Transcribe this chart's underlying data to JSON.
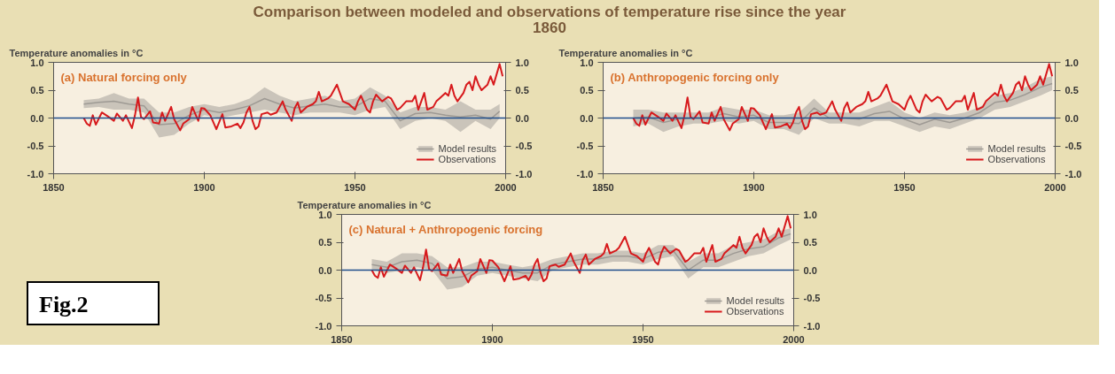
{
  "chart_data": [
    {
      "type": "line",
      "title": "Comparison between modeled and observations of temperature rise since the year 1860",
      "subtitle": "(a) Natural forcing only",
      "ylabel": "Temperature anomalies in °C",
      "xlim": [
        1850,
        2000
      ],
      "xticks": [
        1850,
        1900,
        1950,
        2000
      ],
      "ylim": [
        -1.0,
        1.0
      ],
      "yticks": [
        {
          "value": -1.0,
          "label": "-1.0"
        },
        {
          "value": -0.5,
          "label": "-0.5"
        },
        {
          "value": 0,
          "label": "0.0"
        },
        {
          "value": 0.5,
          "label": "0.5"
        },
        {
          "value": 1.0,
          "label": "1.0"
        }
      ],
      "y2lim": [
        -1.0,
        1.0
      ],
      "y2ticks": [
        {
          "value": -1.0,
          "label": "-1.0"
        },
        {
          "value": -0.5,
          "label": "-0.5"
        },
        {
          "value": 0,
          "label": "0.0"
        },
        {
          "value": 0.5,
          "label": "0.5"
        },
        {
          "value": 1.0,
          "label": "1.0"
        }
      ],
      "ref_lines": [
        {
          "axis": "y",
          "value": 0,
          "color": "#1f4e8c"
        }
      ],
      "grid": false,
      "legend": "bottom right",
      "series": [
        {
          "name": "Model results",
          "color": "#9e9a94",
          "x": [
            1860,
            1865,
            1870,
            1875,
            1880,
            1885,
            1890,
            1895,
            1900,
            1905,
            1910,
            1915,
            1920,
            1925,
            1930,
            1935,
            1940,
            1945,
            1950,
            1955,
            1960,
            1965,
            1970,
            1975,
            1980,
            1985,
            1990,
            1995,
            1998
          ],
          "lower": [
            0.18,
            0.2,
            0.15,
            0.15,
            0.1,
            -0.35,
            -0.3,
            -0.1,
            0.05,
            0.0,
            0.05,
            0.1,
            0.15,
            0.1,
            0.05,
            0.1,
            0.1,
            0.1,
            0.05,
            0.15,
            0.2,
            -0.2,
            -0.05,
            0.0,
            -0.05,
            -0.25,
            -0.05,
            -0.2,
            0.0
          ],
          "upper": [
            0.32,
            0.35,
            0.45,
            0.35,
            0.35,
            0.1,
            0.1,
            0.2,
            0.25,
            0.2,
            0.25,
            0.35,
            0.55,
            0.4,
            0.3,
            0.35,
            0.4,
            0.3,
            0.35,
            0.55,
            0.4,
            0.1,
            0.2,
            0.2,
            0.15,
            0.3,
            0.15,
            0.15,
            0.25
          ],
          "values": [
            0.25,
            0.28,
            0.3,
            0.25,
            0.22,
            -0.12,
            -0.1,
            0.05,
            0.15,
            0.1,
            0.15,
            0.22,
            0.35,
            0.25,
            0.18,
            0.22,
            0.25,
            0.2,
            0.2,
            0.35,
            0.3,
            -0.05,
            0.08,
            0.1,
            0.05,
            0.02,
            0.05,
            -0.02,
            0.12
          ]
        },
        {
          "name": "Observations",
          "color": "#d7191c",
          "x": [
            1860,
            1861,
            1862,
            1863,
            1864,
            1866,
            1868,
            1870,
            1871,
            1873,
            1874,
            1876,
            1877,
            1878,
            1879,
            1880,
            1882,
            1883,
            1885,
            1886,
            1887,
            1889,
            1890,
            1892,
            1893,
            1895,
            1896,
            1898,
            1899,
            1900,
            1902,
            1904,
            1906,
            1907,
            1909,
            1911,
            1912,
            1913,
            1914,
            1915,
            1916,
            1917,
            1918,
            1919,
            1921,
            1922,
            1924,
            1926,
            1927,
            1929,
            1930,
            1931,
            1932,
            1934,
            1936,
            1937,
            1938,
            1939,
            1941,
            1942,
            1944,
            1945,
            1946,
            1948,
            1950,
            1951,
            1952,
            1954,
            1955,
            1956,
            1957,
            1959,
            1961,
            1962,
            1964,
            1965,
            1967,
            1969,
            1970,
            1971,
            1972,
            1973,
            1974,
            1976,
            1977,
            1978,
            1980,
            1981,
            1982,
            1983,
            1984,
            1986,
            1987,
            1988,
            1989,
            1990,
            1991,
            1992,
            1994,
            1995,
            1996,
            1998,
            1999
          ],
          "values": [
            0.0,
            -0.1,
            -0.14,
            0.05,
            -0.12,
            0.1,
            0.03,
            -0.05,
            0.08,
            -0.05,
            0.05,
            -0.18,
            0.05,
            0.37,
            0.02,
            -0.02,
            0.12,
            -0.08,
            -0.1,
            0.1,
            -0.05,
            0.2,
            -0.02,
            -0.22,
            -0.1,
            -0.02,
            0.2,
            -0.05,
            0.18,
            0.17,
            0.05,
            -0.2,
            0.07,
            -0.17,
            -0.15,
            -0.1,
            -0.18,
            -0.08,
            0.1,
            0.2,
            -0.05,
            -0.2,
            -0.15,
            0.07,
            0.1,
            0.06,
            0.1,
            0.3,
            0.15,
            -0.05,
            0.18,
            0.28,
            0.1,
            0.2,
            0.25,
            0.3,
            0.47,
            0.3,
            0.35,
            0.4,
            0.6,
            0.45,
            0.3,
            0.25,
            0.15,
            0.3,
            0.4,
            0.15,
            0.1,
            0.3,
            0.42,
            0.3,
            0.38,
            0.35,
            0.15,
            0.18,
            0.3,
            0.3,
            0.4,
            0.15,
            0.3,
            0.45,
            0.15,
            0.2,
            0.3,
            0.35,
            0.45,
            0.4,
            0.6,
            0.4,
            0.3,
            0.45,
            0.6,
            0.65,
            0.5,
            0.75,
            0.6,
            0.5,
            0.6,
            0.75,
            0.6,
            0.97,
            0.75
          ]
        }
      ]
    },
    {
      "type": "line",
      "subtitle": "(b) Anthropogenic forcing only",
      "ylabel": "Temperature anomalies in °C",
      "xlim": [
        1850,
        2000
      ],
      "xticks": [
        1850,
        1900,
        1950,
        2000
      ],
      "ylim": [
        -1.0,
        1.0
      ],
      "yticks": [
        {
          "value": -1.0,
          "label": "-1.0"
        },
        {
          "value": -0.5,
          "label": "-0.5"
        },
        {
          "value": 0,
          "label": "0.0"
        },
        {
          "value": 0.5,
          "label": "0.5"
        },
        {
          "value": 1.0,
          "label": "1.0"
        }
      ],
      "y2lim": [
        -1.0,
        1.0
      ],
      "y2ticks": [
        {
          "value": -1.0,
          "label": "-1.0"
        },
        {
          "value": -0.5,
          "label": "-0.5"
        },
        {
          "value": 0,
          "label": "0.0"
        },
        {
          "value": 0.5,
          "label": "0.5"
        },
        {
          "value": 1.0,
          "label": "1.0"
        }
      ],
      "ref_lines": [
        {
          "axis": "y",
          "value": 0,
          "color": "#1f4e8c"
        }
      ],
      "grid": false,
      "legend": "bottom right",
      "series": [
        {
          "name": "Model results",
          "color": "#9e9a94",
          "x": [
            1860,
            1865,
            1870,
            1875,
            1880,
            1885,
            1890,
            1895,
            1900,
            1905,
            1910,
            1915,
            1920,
            1925,
            1930,
            1935,
            1940,
            1945,
            1950,
            1955,
            1960,
            1965,
            1970,
            1975,
            1980,
            1985,
            1990,
            1995,
            1999
          ],
          "lower": [
            -0.15,
            -0.1,
            -0.25,
            -0.15,
            -0.1,
            -0.1,
            -0.05,
            -0.1,
            -0.05,
            -0.2,
            -0.2,
            -0.3,
            0.0,
            -0.1,
            -0.1,
            -0.15,
            -0.05,
            -0.05,
            -0.15,
            -0.25,
            -0.15,
            -0.2,
            -0.1,
            0.0,
            0.15,
            0.2,
            0.3,
            0.4,
            0.5
          ],
          "upper": [
            0.15,
            0.15,
            0.1,
            0.1,
            0.1,
            0.1,
            0.2,
            0.15,
            0.15,
            0.05,
            0.05,
            0.1,
            0.35,
            0.1,
            0.1,
            0.1,
            0.2,
            0.3,
            0.1,
            0.0,
            0.1,
            0.05,
            0.1,
            0.2,
            0.4,
            0.45,
            0.55,
            0.7,
            0.75
          ],
          "values": [
            0.0,
            0.02,
            -0.08,
            -0.02,
            0.0,
            0.0,
            0.08,
            0.02,
            0.05,
            -0.08,
            -0.08,
            -0.1,
            0.18,
            0.0,
            0.0,
            -0.02,
            0.08,
            0.12,
            -0.02,
            -0.12,
            -0.02,
            -0.08,
            0.0,
            0.1,
            0.28,
            0.32,
            0.42,
            0.55,
            0.62
          ]
        },
        {
          "name": "Observations",
          "color": "#d7191c",
          "x": [
            1860,
            1861,
            1862,
            1863,
            1864,
            1866,
            1868,
            1870,
            1871,
            1873,
            1874,
            1876,
            1877,
            1878,
            1879,
            1880,
            1882,
            1883,
            1885,
            1886,
            1887,
            1889,
            1890,
            1892,
            1893,
            1895,
            1896,
            1898,
            1899,
            1900,
            1902,
            1904,
            1906,
            1907,
            1909,
            1911,
            1912,
            1913,
            1914,
            1915,
            1916,
            1917,
            1918,
            1919,
            1921,
            1922,
            1924,
            1926,
            1927,
            1929,
            1930,
            1931,
            1932,
            1934,
            1936,
            1937,
            1938,
            1939,
            1941,
            1942,
            1944,
            1945,
            1946,
            1948,
            1950,
            1951,
            1952,
            1954,
            1955,
            1956,
            1957,
            1959,
            1961,
            1962,
            1964,
            1965,
            1967,
            1969,
            1970,
            1971,
            1972,
            1973,
            1974,
            1976,
            1977,
            1978,
            1980,
            1981,
            1982,
            1983,
            1984,
            1986,
            1987,
            1988,
            1989,
            1990,
            1991,
            1992,
            1994,
            1995,
            1996,
            1998,
            1999
          ],
          "values": [
            0.0,
            -0.1,
            -0.14,
            0.05,
            -0.12,
            0.1,
            0.03,
            -0.05,
            0.08,
            -0.05,
            0.05,
            -0.18,
            0.05,
            0.37,
            0.02,
            -0.02,
            0.12,
            -0.08,
            -0.1,
            0.1,
            -0.05,
            0.2,
            -0.02,
            -0.22,
            -0.1,
            -0.02,
            0.2,
            -0.05,
            0.18,
            0.17,
            0.05,
            -0.2,
            0.07,
            -0.17,
            -0.15,
            -0.1,
            -0.18,
            -0.08,
            0.1,
            0.2,
            -0.05,
            -0.2,
            -0.15,
            0.07,
            0.1,
            0.06,
            0.1,
            0.3,
            0.15,
            -0.05,
            0.18,
            0.28,
            0.1,
            0.2,
            0.25,
            0.3,
            0.47,
            0.3,
            0.35,
            0.4,
            0.6,
            0.45,
            0.3,
            0.25,
            0.15,
            0.3,
            0.4,
            0.15,
            0.1,
            0.3,
            0.42,
            0.3,
            0.38,
            0.35,
            0.15,
            0.18,
            0.3,
            0.3,
            0.4,
            0.15,
            0.3,
            0.45,
            0.15,
            0.2,
            0.3,
            0.35,
            0.45,
            0.4,
            0.6,
            0.4,
            0.3,
            0.45,
            0.6,
            0.65,
            0.5,
            0.75,
            0.6,
            0.5,
            0.6,
            0.75,
            0.6,
            0.97,
            0.75
          ]
        }
      ]
    },
    {
      "type": "line",
      "subtitle": "(c) Natural + Anthropogenic forcing",
      "ylabel": "Temperature anomalies in °C",
      "annotations": [
        "Fig.2"
      ],
      "xlim": [
        1850,
        2000
      ],
      "xticks": [
        1850,
        1900,
        1950,
        2000
      ],
      "ylim": [
        -1.0,
        1.0
      ],
      "yticks": [
        {
          "value": -1.0,
          "label": "-1.0"
        },
        {
          "value": -0.5,
          "label": "-0.5"
        },
        {
          "value": 0,
          "label": "0.0"
        },
        {
          "value": 0.5,
          "label": "0.5"
        },
        {
          "value": 1.0,
          "label": "1.0"
        }
      ],
      "y2lim": [
        -1.0,
        1.0
      ],
      "y2ticks": [
        {
          "value": -1.0,
          "label": "-1.0"
        },
        {
          "value": -0.5,
          "label": "-0.5"
        },
        {
          "value": 0,
          "label": "0.0"
        },
        {
          "value": 0.5,
          "label": "0.5"
        },
        {
          "value": 1.0,
          "label": "1.0"
        }
      ],
      "ref_lines": [
        {
          "axis": "y",
          "value": 0,
          "color": "#1f4e8c"
        }
      ],
      "grid": false,
      "legend": "bottom right",
      "series": [
        {
          "name": "Model results",
          "color": "#9e9a94",
          "x": [
            1860,
            1865,
            1870,
            1875,
            1880,
            1885,
            1890,
            1895,
            1900,
            1905,
            1910,
            1915,
            1920,
            1925,
            1930,
            1935,
            1940,
            1945,
            1950,
            1955,
            1960,
            1965,
            1970,
            1975,
            1980,
            1985,
            1990,
            1995,
            1999
          ],
          "lower": [
            0.0,
            -0.05,
            0.0,
            0.05,
            0.0,
            -0.35,
            -0.3,
            -0.1,
            -0.05,
            -0.1,
            -0.15,
            -0.2,
            0.0,
            0.05,
            0.1,
            0.1,
            0.15,
            0.15,
            0.1,
            0.2,
            0.25,
            -0.15,
            0.05,
            0.05,
            0.15,
            0.25,
            0.3,
            0.45,
            0.55
          ],
          "upper": [
            0.2,
            0.15,
            0.3,
            0.3,
            0.25,
            0.05,
            0.05,
            0.15,
            0.15,
            0.1,
            0.05,
            0.1,
            0.2,
            0.25,
            0.3,
            0.3,
            0.35,
            0.35,
            0.3,
            0.45,
            0.45,
            0.15,
            0.3,
            0.3,
            0.45,
            0.5,
            0.55,
            0.7,
            0.75
          ],
          "values": [
            0.1,
            0.05,
            0.15,
            0.18,
            0.12,
            -0.15,
            -0.12,
            0.02,
            0.05,
            0.0,
            -0.05,
            -0.05,
            0.1,
            0.15,
            0.2,
            0.2,
            0.25,
            0.25,
            0.2,
            0.32,
            0.35,
            0.0,
            0.18,
            0.18,
            0.3,
            0.38,
            0.42,
            0.58,
            0.65
          ]
        },
        {
          "name": "Observations",
          "color": "#d7191c",
          "x": [
            1860,
            1861,
            1862,
            1863,
            1864,
            1866,
            1868,
            1870,
            1871,
            1873,
            1874,
            1876,
            1877,
            1878,
            1879,
            1880,
            1882,
            1883,
            1885,
            1886,
            1887,
            1889,
            1890,
            1892,
            1893,
            1895,
            1896,
            1898,
            1899,
            1900,
            1902,
            1904,
            1906,
            1907,
            1909,
            1911,
            1912,
            1913,
            1914,
            1915,
            1916,
            1917,
            1918,
            1919,
            1921,
            1922,
            1924,
            1926,
            1927,
            1929,
            1930,
            1931,
            1932,
            1934,
            1936,
            1937,
            1938,
            1939,
            1941,
            1942,
            1944,
            1945,
            1946,
            1948,
            1950,
            1951,
            1952,
            1954,
            1955,
            1956,
            1957,
            1959,
            1961,
            1962,
            1964,
            1965,
            1967,
            1969,
            1970,
            1971,
            1972,
            1973,
            1974,
            1976,
            1977,
            1978,
            1980,
            1981,
            1982,
            1983,
            1984,
            1986,
            1987,
            1988,
            1989,
            1990,
            1991,
            1992,
            1994,
            1995,
            1996,
            1998,
            1999
          ],
          "values": [
            0.0,
            -0.1,
            -0.14,
            0.05,
            -0.12,
            0.1,
            0.03,
            -0.05,
            0.08,
            -0.05,
            0.05,
            -0.18,
            0.05,
            0.37,
            0.02,
            -0.02,
            0.12,
            -0.08,
            -0.1,
            0.1,
            -0.05,
            0.2,
            -0.02,
            -0.22,
            -0.1,
            -0.02,
            0.2,
            -0.05,
            0.18,
            0.17,
            0.05,
            -0.2,
            0.07,
            -0.17,
            -0.15,
            -0.1,
            -0.18,
            -0.08,
            0.1,
            0.2,
            -0.05,
            -0.2,
            -0.15,
            0.07,
            0.1,
            0.06,
            0.1,
            0.3,
            0.15,
            -0.05,
            0.18,
            0.28,
            0.1,
            0.2,
            0.25,
            0.3,
            0.47,
            0.3,
            0.35,
            0.4,
            0.6,
            0.45,
            0.3,
            0.25,
            0.15,
            0.3,
            0.4,
            0.15,
            0.1,
            0.3,
            0.42,
            0.3,
            0.38,
            0.35,
            0.15,
            0.18,
            0.3,
            0.3,
            0.4,
            0.15,
            0.3,
            0.45,
            0.15,
            0.2,
            0.3,
            0.35,
            0.45,
            0.4,
            0.6,
            0.4,
            0.3,
            0.45,
            0.6,
            0.65,
            0.5,
            0.75,
            0.6,
            0.5,
            0.6,
            0.75,
            0.6,
            0.97,
            0.75
          ]
        }
      ]
    }
  ]
}
